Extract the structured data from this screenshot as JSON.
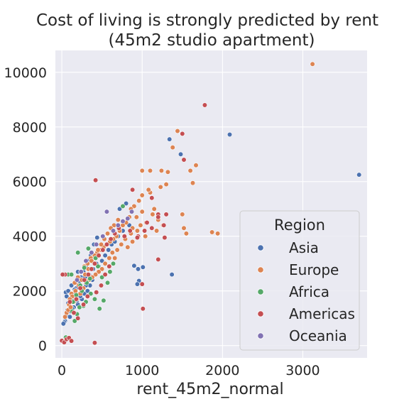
{
  "chart_data": {
    "type": "scatter",
    "title": "Cost of living is strongly predicted by rent",
    "subtitle": "(45m2 studio apartment)",
    "xlabel": "rent_45m2_normal",
    "ylabel": "",
    "xlim": [
      -80,
      3800
    ],
    "ylim": [
      -450,
      10800
    ],
    "xticks": [
      0,
      1000,
      2000,
      3000
    ],
    "yticks": [
      0,
      2000,
      4000,
      6000,
      8000,
      10000
    ],
    "grid": true,
    "background_color": "#eaeaf2",
    "legend": {
      "title": "Region",
      "placement": "lower-right"
    },
    "series": [
      {
        "name": "Asia",
        "color": "#4c72b0",
        "points": [
          [
            3700,
            6250
          ],
          [
            2090,
            7720
          ],
          [
            1340,
            7550
          ],
          [
            1480,
            7000
          ],
          [
            1370,
            2600
          ],
          [
            950,
            2800
          ],
          [
            1010,
            2870
          ],
          [
            900,
            2920
          ],
          [
            960,
            2370
          ],
          [
            940,
            2250
          ],
          [
            800,
            5200
          ],
          [
            720,
            5000
          ],
          [
            560,
            4900
          ],
          [
            440,
            3950
          ],
          [
            400,
            3700
          ],
          [
            360,
            3300
          ],
          [
            330,
            3100
          ],
          [
            300,
            2900
          ],
          [
            270,
            2700
          ],
          [
            240,
            2500
          ],
          [
            210,
            2300
          ],
          [
            180,
            2100
          ],
          [
            160,
            2050
          ],
          [
            140,
            1900
          ],
          [
            120,
            1700
          ],
          [
            100,
            1600
          ],
          [
            90,
            1500
          ],
          [
            70,
            1300
          ],
          [
            60,
            1100
          ],
          [
            40,
            900
          ],
          [
            30,
            850
          ],
          [
            20,
            800
          ],
          [
            50,
            1950
          ],
          [
            80,
            2000
          ],
          [
            110,
            1250
          ],
          [
            150,
            1400
          ],
          [
            200,
            1500
          ],
          [
            250,
            1700
          ],
          [
            280,
            1900
          ],
          [
            320,
            2000
          ],
          [
            350,
            2200
          ],
          [
            380,
            2400
          ],
          [
            420,
            2600
          ],
          [
            460,
            2900
          ],
          [
            500,
            3100
          ],
          [
            540,
            3300
          ],
          [
            580,
            3500
          ],
          [
            620,
            3700
          ],
          [
            660,
            3800
          ],
          [
            700,
            4000
          ],
          [
            760,
            4200
          ],
          [
            840,
            4400
          ],
          [
            300,
            2200
          ],
          [
            260,
            2050
          ],
          [
            230,
            1800
          ],
          [
            190,
            1650
          ],
          [
            130,
            1350
          ],
          [
            100,
            1050
          ],
          [
            60,
            1800
          ],
          [
            170,
            2300
          ],
          [
            220,
            2450
          ],
          [
            290,
            2500
          ],
          [
            340,
            2600
          ],
          [
            390,
            2800
          ],
          [
            430,
            3000
          ],
          [
            200,
            2700
          ],
          [
            120,
            2200
          ],
          [
            80,
            1550
          ]
        ]
      },
      {
        "name": "Europe",
        "color": "#dd8452",
        "points": [
          [
            3120,
            10300
          ],
          [
            1440,
            7850
          ],
          [
            1380,
            7250
          ],
          [
            1670,
            6600
          ],
          [
            1600,
            6400
          ],
          [
            1630,
            5950
          ],
          [
            1240,
            6400
          ],
          [
            1320,
            6350
          ],
          [
            1000,
            6400
          ],
          [
            1100,
            6400
          ],
          [
            1300,
            5900
          ],
          [
            1230,
            5800
          ],
          [
            1100,
            5600
          ],
          [
            1000,
            5500
          ],
          [
            960,
            5300
          ],
          [
            900,
            5100
          ],
          [
            860,
            5000
          ],
          [
            1130,
            4800
          ],
          [
            1500,
            4800
          ],
          [
            1520,
            4300
          ],
          [
            1550,
            4100
          ],
          [
            1870,
            4150
          ],
          [
            1940,
            4100
          ],
          [
            1260,
            4400
          ],
          [
            1200,
            4600
          ],
          [
            1180,
            4200
          ],
          [
            1050,
            4500
          ],
          [
            980,
            4400
          ],
          [
            940,
            4200
          ],
          [
            880,
            4300
          ],
          [
            840,
            4700
          ],
          [
            800,
            4500
          ],
          [
            760,
            4400
          ],
          [
            720,
            4200
          ],
          [
            680,
            4000
          ],
          [
            640,
            3900
          ],
          [
            600,
            3800
          ],
          [
            560,
            3700
          ],
          [
            520,
            3600
          ],
          [
            480,
            3500
          ],
          [
            440,
            3400
          ],
          [
            400,
            3300
          ],
          [
            360,
            3200
          ],
          [
            320,
            3000
          ],
          [
            280,
            2900
          ],
          [
            240,
            2700
          ],
          [
            200,
            2500
          ],
          [
            160,
            2300
          ],
          [
            120,
            1900
          ],
          [
            90,
            1500
          ],
          [
            60,
            1200
          ],
          [
            40,
            1050
          ],
          [
            700,
            4600
          ],
          [
            650,
            4400
          ],
          [
            610,
            4300
          ],
          [
            570,
            4100
          ],
          [
            530,
            3900
          ],
          [
            490,
            3700
          ],
          [
            450,
            3500
          ],
          [
            410,
            3300
          ],
          [
            370,
            3100
          ],
          [
            330,
            2800
          ],
          [
            290,
            2600
          ],
          [
            250,
            2400
          ],
          [
            210,
            2200
          ],
          [
            170,
            2000
          ],
          [
            130,
            1800
          ],
          [
            100,
            1700
          ],
          [
            80,
            1300
          ],
          [
            1000,
            4900
          ],
          [
            930,
            4700
          ],
          [
            860,
            4100
          ],
          [
            790,
            3900
          ],
          [
            740,
            3700
          ],
          [
            690,
            3500
          ],
          [
            630,
            3400
          ],
          [
            590,
            3200
          ],
          [
            540,
            3000
          ],
          [
            500,
            2800
          ],
          [
            460,
            2700
          ],
          [
            420,
            2600
          ],
          [
            380,
            2500
          ],
          [
            340,
            2400
          ],
          [
            300,
            2300
          ],
          [
            270,
            2100
          ],
          [
            230,
            1900
          ],
          [
            190,
            1700
          ],
          [
            150,
            1600
          ],
          [
            110,
            1400
          ],
          [
            1080,
            5700
          ],
          [
            1040,
            4000
          ],
          [
            1150,
            5000
          ],
          [
            820,
            3600
          ],
          [
            880,
            3800
          ],
          [
            660,
            3200
          ]
        ]
      },
      {
        "name": "Africa",
        "color": "#55a868",
        "points": [
          [
            80,
            2600
          ],
          [
            120,
            2600
          ],
          [
            50,
            300
          ],
          [
            90,
            280
          ],
          [
            200,
            3400
          ],
          [
            330,
            3550
          ],
          [
            420,
            3200
          ],
          [
            280,
            2850
          ],
          [
            230,
            2200
          ],
          [
            180,
            1850
          ],
          [
            140,
            1600
          ],
          [
            130,
            1250
          ],
          [
            160,
            900
          ],
          [
            250,
            2000
          ],
          [
            310,
            2300
          ],
          [
            360,
            1900
          ],
          [
            410,
            1700
          ],
          [
            470,
            1350
          ],
          [
            520,
            1650
          ],
          [
            570,
            2300
          ],
          [
            760,
            5100
          ],
          [
            640,
            3000
          ],
          [
            220,
            1400
          ],
          [
            190,
            1150
          ],
          [
            270,
            1450
          ],
          [
            300,
            1600
          ],
          [
            350,
            2450
          ],
          [
            450,
            2900
          ],
          [
            500,
            2500
          ],
          [
            600,
            2700
          ]
        ]
      },
      {
        "name": "Americas",
        "color": "#c44e52",
        "points": [
          [
            1780,
            8800
          ],
          [
            1500,
            7750
          ],
          [
            1520,
            6800
          ],
          [
            420,
            6050
          ],
          [
            880,
            5700
          ],
          [
            1120,
            5400
          ],
          [
            1200,
            4800
          ],
          [
            1300,
            4800
          ],
          [
            1270,
            4400
          ],
          [
            1280,
            3950
          ],
          [
            1200,
            4700
          ],
          [
            1120,
            4300
          ],
          [
            1060,
            4500
          ],
          [
            950,
            4000
          ],
          [
            1030,
            4200
          ],
          [
            780,
            4000
          ],
          [
            940,
            3950
          ],
          [
            1000,
            2250
          ],
          [
            1010,
            1350
          ],
          [
            1200,
            3150
          ],
          [
            410,
            100
          ],
          [
            40,
            2600
          ],
          [
            10,
            2600
          ],
          [
            0,
            180
          ],
          [
            30,
            120
          ],
          [
            60,
            230
          ],
          [
            90,
            280
          ],
          [
            120,
            170
          ],
          [
            100,
            1600
          ],
          [
            180,
            1700
          ],
          [
            230,
            2100
          ],
          [
            280,
            2400
          ],
          [
            330,
            2600
          ],
          [
            370,
            2800
          ],
          [
            410,
            3000
          ],
          [
            460,
            3300
          ],
          [
            510,
            3500
          ],
          [
            560,
            3700
          ],
          [
            610,
            3900
          ],
          [
            660,
            4100
          ],
          [
            710,
            4300
          ],
          [
            490,
            2200
          ],
          [
            540,
            2600
          ],
          [
            590,
            2900
          ],
          [
            270,
            1500
          ],
          [
            150,
            1200
          ],
          [
            320,
            1800
          ],
          [
            200,
            1000
          ],
          [
            430,
            1950
          ],
          [
            850,
            4200
          ]
        ]
      },
      {
        "name": "Oceania",
        "color": "#8172b3",
        "points": [
          [
            560,
            4900
          ],
          [
            870,
            4900
          ],
          [
            760,
            4550
          ],
          [
            510,
            4000
          ],
          [
            640,
            4200
          ],
          [
            430,
            3700
          ],
          [
            370,
            3400
          ],
          [
            300,
            3100
          ],
          [
            240,
            2700
          ],
          [
            190,
            2400
          ],
          [
            700,
            4400
          ],
          [
            820,
            4650
          ]
        ]
      }
    ]
  }
}
